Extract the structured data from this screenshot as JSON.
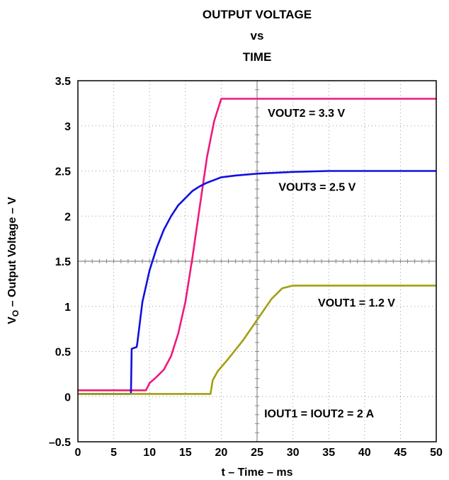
{
  "chart_data": {
    "type": "line",
    "title": [
      "OUTPUT VOLTAGE",
      "vs",
      "TIME"
    ],
    "xlabel": "t – Time – ms",
    "ylabel_main": "V",
    "ylabel_sub": "O",
    "ylabel_rest": " – Output Voltage – V",
    "xlim": [
      0,
      50
    ],
    "ylim": [
      -0.5,
      3.5
    ],
    "xticks": [
      "0",
      "5",
      "10",
      "15",
      "20",
      "25",
      "30",
      "35",
      "40",
      "45",
      "50"
    ],
    "yticks": [
      "–0.5",
      "0",
      "0.5",
      "1",
      "1.5",
      "2",
      "2.5",
      "3",
      "3.5"
    ],
    "grid": true,
    "series": [
      {
        "name": "VOUT2 = 3.3 V",
        "color": "#f0187c",
        "x": [
          0,
          8,
          9.5,
          10,
          11,
          12,
          13,
          14,
          15,
          16,
          17,
          18,
          19,
          20,
          22,
          30,
          40,
          50
        ],
        "y": [
          0.07,
          0.07,
          0.07,
          0.15,
          0.22,
          0.3,
          0.45,
          0.7,
          1.05,
          1.55,
          2.1,
          2.65,
          3.05,
          3.3,
          3.3,
          3.3,
          3.3,
          3.3
        ]
      },
      {
        "name": "VOUT3 = 2.5 V",
        "color": "#1010e0",
        "x": [
          0,
          7.4,
          7.5,
          8.2,
          8.3,
          9,
          10,
          11,
          12,
          13,
          14,
          15,
          16,
          17,
          18,
          19,
          20,
          22,
          25,
          30,
          35,
          40,
          45,
          50
        ],
        "y": [
          0.03,
          0.03,
          0.53,
          0.55,
          0.6,
          1.05,
          1.4,
          1.65,
          1.85,
          2.0,
          2.12,
          2.2,
          2.28,
          2.33,
          2.37,
          2.4,
          2.43,
          2.45,
          2.47,
          2.49,
          2.5,
          2.5,
          2.5,
          2.5
        ]
      },
      {
        "name": "VOUT1 = 1.2 V",
        "color": "#a0a010",
        "x": [
          0,
          8,
          18.5,
          18.8,
          19.5,
          21,
          23,
          25,
          27,
          28.5,
          30,
          35,
          40,
          45,
          50
        ],
        "y": [
          0.03,
          0.03,
          0.03,
          0.18,
          0.28,
          0.42,
          0.62,
          0.85,
          1.08,
          1.2,
          1.23,
          1.23,
          1.23,
          1.23,
          1.23
        ]
      }
    ],
    "annotations": [
      {
        "text": "VOUT2 = 3.3 V",
        "x": 26.5,
        "y": 3.1
      },
      {
        "text": "VOUT3 = 2.5 V",
        "x": 28,
        "y": 2.28
      },
      {
        "text": "VOUT1 = 1.2 V",
        "x": 33.5,
        "y": 1.0
      },
      {
        "text": "IOUT1 = IOUT2 = 2 A",
        "x": 26,
        "y": -0.23
      }
    ]
  }
}
